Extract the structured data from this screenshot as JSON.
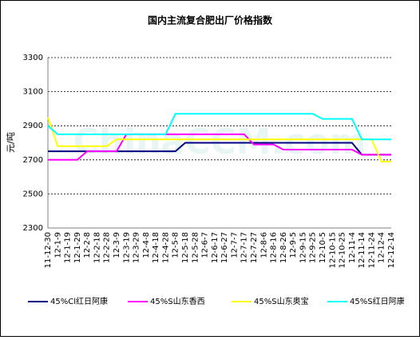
{
  "chart_data": {
    "type": "line",
    "title": "国内主流复合肥出厂价格指数",
    "y_label": "元/吨",
    "watermark": "ChinaCCM.com",
    "categories": [
      "11-12-30",
      "12-1-9",
      "12-1-19",
      "12-1-29",
      "12-2-8",
      "12-2-18",
      "12-2-28",
      "12-3-9",
      "12-3-19",
      "12-3-29",
      "12-4-8",
      "12-4-18",
      "12-4-28",
      "12-5-8",
      "12-5-18",
      "12-5-28",
      "12-6-7",
      "12-6-17",
      "12-6-27",
      "12-7-7",
      "12-7-17",
      "12-7-27",
      "12-8-6",
      "12-8-16",
      "12-8-26",
      "12-9-5",
      "12-9-15",
      "12-9-25",
      "12-10-5",
      "12-10-15",
      "12-10-25",
      "12-11-4",
      "12-11-14",
      "12-11-24",
      "12-12-4",
      "12-12-14"
    ],
    "series": [
      {
        "name": "45%Cl红日阿康",
        "color": "#000080",
        "values": [
          2750,
          2750,
          2750,
          2750,
          2750,
          2750,
          2750,
          2750,
          2750,
          2750,
          2750,
          2750,
          2750,
          2750,
          2800,
          2800,
          2800,
          2800,
          2800,
          2800,
          2800,
          2800,
          2800,
          2800,
          2800,
          2800,
          2800,
          2800,
          2800,
          2800,
          2800,
          2800,
          2730,
          2730,
          2730,
          2730
        ]
      },
      {
        "name": "45%S山东香西",
        "color": "#ff00ff",
        "values": [
          2700,
          2700,
          2700,
          2700,
          2750,
          2750,
          2750,
          2750,
          2850,
          2850,
          2850,
          2850,
          2850,
          2850,
          2850,
          2850,
          2850,
          2850,
          2850,
          2850,
          2850,
          2790,
          2790,
          2790,
          2760,
          2760,
          2760,
          2760,
          2760,
          2760,
          2760,
          2760,
          2730,
          2730,
          2730,
          2730
        ]
      },
      {
        "name": "45%S山东奥宝",
        "color": "#ffff00",
        "values": [
          2950,
          2780,
          2780,
          2780,
          2780,
          2780,
          2780,
          2820,
          2820,
          2820,
          2820,
          2820,
          2820,
          2820,
          2820,
          2820,
          2820,
          2820,
          2820,
          2820,
          2820,
          2820,
          2820,
          2820,
          2820,
          2820,
          2820,
          2820,
          2820,
          2820,
          2820,
          2820,
          2820,
          2820,
          2690,
          2690
        ]
      },
      {
        "name": "45%S红日阿康",
        "color": "#00ffff",
        "values": [
          2900,
          2850,
          2850,
          2850,
          2850,
          2850,
          2850,
          2850,
          2850,
          2850,
          2850,
          2850,
          2850,
          2970,
          2970,
          2970,
          2970,
          2970,
          2970,
          2970,
          2970,
          2970,
          2970,
          2970,
          2970,
          2970,
          2970,
          2970,
          2940,
          2940,
          2940,
          2940,
          2820,
          2820,
          2820,
          2820
        ]
      }
    ],
    "ylim": [
      2300,
      3300
    ],
    "yticks": [
      2300,
      2500,
      2700,
      2900,
      3100,
      3300
    ],
    "grid": true
  }
}
